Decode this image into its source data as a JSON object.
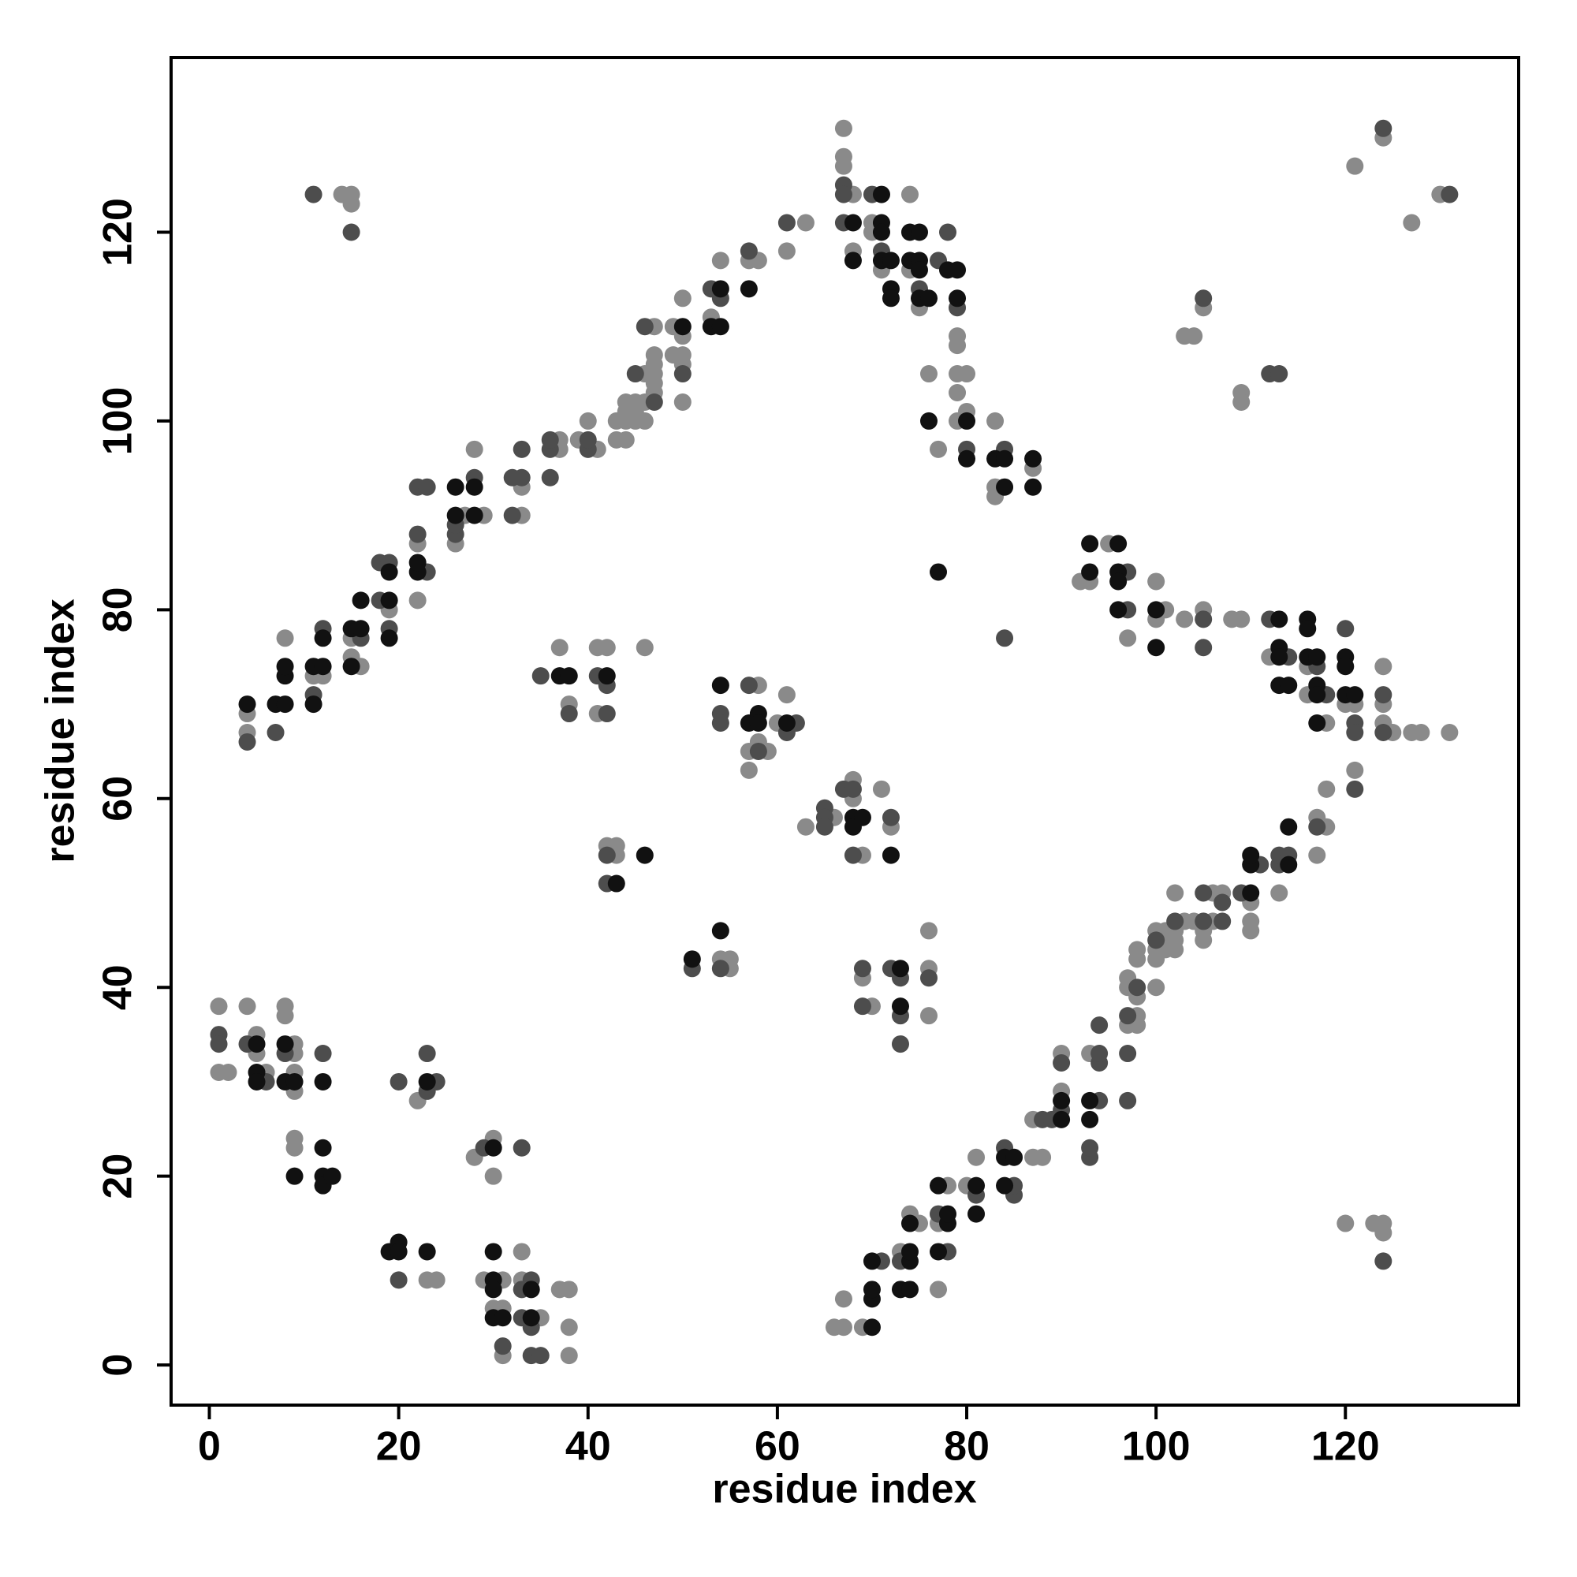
{
  "chart_data": {
    "type": "scatter",
    "x_label": "residue index",
    "y_label": "residue index",
    "xlim": [
      -4.04,
      138.3
    ],
    "ylim": [
      -4.25,
      138.5
    ],
    "xticks": [
      0,
      20,
      40,
      60,
      80,
      100,
      120
    ],
    "yticks": [
      0,
      20,
      40,
      60,
      80,
      100,
      120
    ],
    "grid": false,
    "series": [
      {
        "color": "#8a8a8a",
        "x": [
          4,
          4,
          8,
          11,
          12,
          15,
          15,
          16,
          19,
          22,
          22,
          26,
          27,
          28,
          29,
          33,
          33,
          37,
          37,
          39,
          40,
          41,
          43,
          43,
          44,
          44,
          44,
          44,
          45,
          45,
          45,
          46,
          46,
          46,
          47,
          47,
          47,
          47,
          47,
          47,
          50,
          50,
          50,
          50,
          50,
          49,
          49,
          53,
          54,
          57,
          58,
          61,
          63,
          67,
          67,
          67,
          68,
          68,
          70,
          70,
          71,
          74,
          74,
          75,
          79,
          79,
          79,
          79,
          79,
          76,
          77,
          80,
          80,
          83,
          83,
          83,
          87,
          92,
          93,
          95,
          97,
          100,
          100,
          101,
          103,
          105,
          108,
          109,
          112,
          116,
          116,
          118,
          120,
          121,
          124,
          124,
          124,
          125,
          127,
          128,
          131,
          66,
          67,
          67,
          69,
          73,
          74,
          75,
          77,
          77,
          78,
          80,
          81,
          87,
          87,
          88,
          90,
          90,
          93,
          97,
          97,
          97,
          98,
          98,
          98,
          98,
          98,
          100,
          100,
          100,
          100,
          101,
          101,
          101,
          102,
          102,
          102,
          102,
          103,
          104,
          105,
          105,
          106,
          106,
          107,
          110,
          110,
          110,
          113,
          117,
          117,
          118,
          118,
          121,
          120,
          123,
          124,
          124,
          37,
          38,
          41,
          41,
          42,
          46,
          42,
          43,
          43,
          54,
          55,
          55,
          57,
          57,
          58,
          58,
          59,
          60,
          61,
          63,
          66,
          68,
          68,
          69,
          71,
          72,
          69,
          70,
          76,
          76,
          76,
          104,
          103,
          105,
          109,
          109,
          121,
          124,
          127,
          130,
          14,
          15,
          15,
          1,
          1,
          2,
          4,
          5,
          5,
          6,
          8,
          8,
          9,
          9,
          9,
          9,
          9,
          9,
          22,
          28,
          30,
          30,
          23,
          24,
          29,
          30,
          31,
          31,
          31,
          33,
          33,
          35,
          37,
          38,
          38,
          38
        ],
        "values": [
          69,
          67,
          77,
          73,
          73,
          75,
          77,
          74,
          80,
          81,
          87,
          87,
          90,
          97,
          90,
          90,
          93,
          97,
          98,
          98,
          100,
          97,
          98,
          100,
          98,
          100,
          101,
          102,
          100,
          101,
          102,
          100,
          102,
          105,
          103,
          104,
          105,
          106,
          107,
          110,
          102,
          106,
          107,
          109,
          113,
          107,
          110,
          111,
          117,
          117,
          117,
          118,
          121,
          131,
          128,
          127,
          124,
          118,
          121,
          120,
          116,
          124,
          116,
          112,
          109,
          108,
          105,
          103,
          100,
          105,
          97,
          105,
          101,
          100,
          93,
          92,
          95,
          83,
          83,
          87,
          77,
          83,
          79,
          80,
          79,
          80,
          79,
          79,
          75,
          74,
          71,
          68,
          70,
          70,
          74,
          70,
          68,
          67,
          67,
          67,
          67,
          4,
          4,
          7,
          4,
          12,
          16,
          15,
          8,
          15,
          19,
          19,
          22,
          22,
          26,
          22,
          29,
          33,
          33,
          36,
          40,
          41,
          36,
          37,
          39,
          43,
          44,
          40,
          43,
          44,
          46,
          44,
          45,
          46,
          44,
          45,
          46,
          50,
          47,
          47,
          45,
          46,
          47,
          50,
          50,
          46,
          47,
          49,
          50,
          54,
          58,
          57,
          61,
          63,
          15,
          15,
          15,
          14,
          76,
          70,
          76,
          69,
          76,
          76,
          55,
          55,
          54,
          43,
          43,
          42,
          65,
          63,
          72,
          66,
          65,
          68,
          71,
          57,
          58,
          62,
          60,
          54,
          61,
          57,
          41,
          38,
          46,
          42,
          37,
          109,
          109,
          112,
          103,
          102,
          127,
          130,
          121,
          124,
          124,
          124,
          123,
          38,
          31,
          31,
          38,
          35,
          33,
          31,
          38,
          37,
          34,
          33,
          31,
          29,
          24,
          23,
          28,
          22,
          24,
          20,
          9,
          9,
          9,
          6,
          9,
          6,
          1,
          12,
          9,
          5,
          8,
          8,
          4,
          1
        ]
      },
      {
        "color": "#4d4d4d",
        "x": [
          4,
          7,
          11,
          12,
          16,
          18,
          18,
          19,
          19,
          22,
          22,
          23,
          23,
          26,
          26,
          28,
          32,
          32,
          33,
          33,
          36,
          36,
          36,
          40,
          40,
          45,
          46,
          47,
          50,
          53,
          54,
          57,
          61,
          67,
          67,
          67,
          70,
          71,
          75,
          77,
          78,
          79,
          80,
          84,
          84,
          97,
          97,
          105,
          105,
          112,
          114,
          117,
          118,
          120,
          121,
          121,
          124,
          124,
          71,
          73,
          77,
          78,
          81,
          84,
          85,
          85,
          88,
          89,
          90,
          90,
          93,
          93,
          94,
          94,
          94,
          94,
          97,
          97,
          97,
          98,
          100,
          102,
          105,
          105,
          107,
          107,
          109,
          111,
          113,
          113,
          114,
          117,
          121,
          124,
          35,
          38,
          41,
          42,
          42,
          42,
          42,
          51,
          54,
          54,
          54,
          57,
          58,
          61,
          62,
          65,
          65,
          65,
          67,
          68,
          68,
          72,
          69,
          69,
          72,
          73,
          73,
          73,
          76,
          105,
          112,
          113,
          124,
          131,
          11,
          15,
          1,
          1,
          4,
          6,
          8,
          12,
          20,
          23,
          23,
          24,
          29,
          33,
          20,
          31,
          33,
          33,
          34,
          34,
          34,
          35
        ],
        "values": [
          66,
          67,
          71,
          78,
          77,
          81,
          85,
          78,
          85,
          88,
          93,
          84,
          93,
          88,
          89,
          94,
          90,
          94,
          94,
          97,
          94,
          97,
          98,
          97,
          98,
          105,
          110,
          102,
          105,
          114,
          113,
          118,
          121,
          125,
          124,
          121,
          124,
          118,
          114,
          117,
          120,
          112,
          97,
          97,
          77,
          84,
          80,
          79,
          76,
          79,
          75,
          74,
          71,
          78,
          68,
          67,
          71,
          67,
          11,
          11,
          16,
          12,
          18,
          23,
          18,
          19,
          26,
          26,
          27,
          32,
          22,
          23,
          28,
          32,
          33,
          36,
          28,
          33,
          37,
          40,
          45,
          47,
          47,
          50,
          47,
          49,
          50,
          53,
          53,
          54,
          54,
          57,
          61,
          11,
          73,
          69,
          73,
          72,
          69,
          54,
          51,
          42,
          42,
          69,
          68,
          72,
          65,
          67,
          68,
          59,
          58,
          57,
          61,
          61,
          54,
          58,
          42,
          38,
          42,
          41,
          37,
          34,
          41,
          113,
          105,
          105,
          131,
          124,
          124,
          120,
          35,
          34,
          34,
          30,
          33,
          33,
          30,
          33,
          29,
          30,
          23,
          23,
          9,
          2,
          8,
          5,
          9,
          4,
          1,
          1
        ]
      },
      {
        "color": "#111111",
        "x": [
          4,
          7,
          8,
          8,
          8,
          11,
          11,
          12,
          12,
          15,
          15,
          16,
          16,
          19,
          19,
          19,
          22,
          22,
          26,
          26,
          28,
          28,
          50,
          53,
          54,
          54,
          57,
          68,
          68,
          71,
          71,
          71,
          71,
          72,
          72,
          72,
          74,
          74,
          75,
          75,
          75,
          75,
          76,
          78,
          79,
          79,
          76,
          80,
          80,
          83,
          84,
          84,
          87,
          87,
          77,
          93,
          93,
          96,
          96,
          96,
          96,
          100,
          100,
          113,
          113,
          113,
          113,
          114,
          116,
          116,
          116,
          117,
          117,
          117,
          117,
          120,
          120,
          120,
          121,
          70,
          70,
          70,
          70,
          73,
          74,
          74,
          74,
          74,
          77,
          77,
          78,
          78,
          81,
          81,
          84,
          84,
          85,
          90,
          90,
          93,
          93,
          110,
          110,
          110,
          114,
          114,
          37,
          38,
          42,
          43,
          46,
          51,
          54,
          54,
          57,
          58,
          58,
          61,
          68,
          68,
          69,
          72,
          73,
          73,
          5,
          5,
          5,
          8,
          8,
          9,
          9,
          12,
          12,
          12,
          12,
          13,
          23,
          30,
          19,
          20,
          20,
          23,
          30,
          30,
          30,
          30,
          31,
          34,
          34
        ],
        "values": [
          70,
          70,
          70,
          73,
          74,
          70,
          74,
          74,
          77,
          74,
          78,
          78,
          81,
          77,
          81,
          84,
          84,
          85,
          90,
          93,
          90,
          93,
          110,
          110,
          110,
          114,
          114,
          121,
          117,
          124,
          121,
          120,
          117,
          117,
          114,
          113,
          120,
          117,
          120,
          117,
          116,
          113,
          113,
          116,
          116,
          113,
          100,
          100,
          96,
          96,
          96,
          93,
          96,
          93,
          84,
          84,
          87,
          87,
          84,
          83,
          80,
          80,
          76,
          79,
          76,
          75,
          72,
          72,
          79,
          78,
          75,
          75,
          72,
          71,
          68,
          75,
          74,
          71,
          71,
          4,
          7,
          8,
          11,
          8,
          8,
          11,
          12,
          15,
          12,
          19,
          15,
          16,
          16,
          19,
          19,
          22,
          22,
          26,
          28,
          26,
          28,
          50,
          53,
          54,
          53,
          57,
          73,
          73,
          73,
          51,
          54,
          43,
          46,
          72,
          68,
          69,
          68,
          68,
          58,
          57,
          58,
          54,
          42,
          38,
          34,
          31,
          30,
          34,
          30,
          30,
          20,
          30,
          23,
          20,
          19,
          20,
          30,
          23,
          12,
          13,
          12,
          12,
          12,
          9,
          8,
          5,
          5,
          8,
          5
        ]
      }
    ]
  }
}
